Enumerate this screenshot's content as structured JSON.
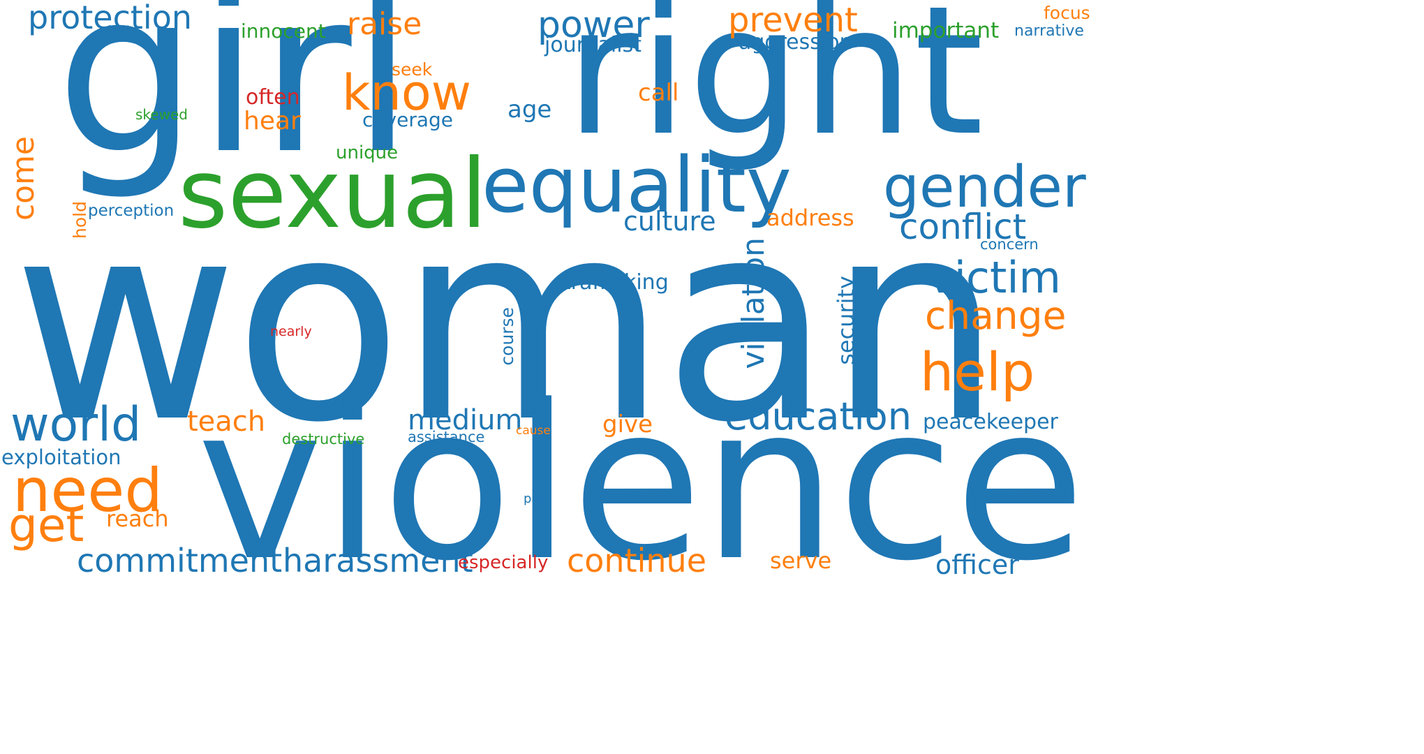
{
  "colors": {
    "blue": "#1f77b4",
    "orange": "#ff7f0e",
    "green": "#2ca02c",
    "red": "#d62728",
    "background": "#ffffff"
  },
  "words": {
    "woman": "woman",
    "violence": "violence",
    "girl": "girl",
    "right": "right",
    "sexual": "sexual",
    "equality": "equality",
    "gender": "gender",
    "know": "know",
    "help": "help",
    "need": "need",
    "world": "world",
    "education": "education",
    "victim": "victim",
    "change": "change",
    "conflict": "conflict",
    "power": "power",
    "prevent": "prevent",
    "protection": "protection",
    "raise": "raise",
    "get": "get",
    "commitment": "commitment",
    "harassment": "harassment",
    "continue": "continue",
    "violation": "violation",
    "come": "come",
    "medium": "medium",
    "teach": "teach",
    "culture": "culture",
    "officer": "officer",
    "peacekeeper": "peacekeeper",
    "security": "security",
    "trafficking": "trafficking",
    "address": "address",
    "hear": "hear",
    "call": "call",
    "give": "give",
    "reach": "reach",
    "exploitation": "exploitation",
    "serve": "serve",
    "important": "important",
    "innocent": "innocent",
    "journalist": "journalist",
    "aggression": "aggression",
    "age": "age",
    "coverage": "coverage",
    "often": "often",
    "especially": "especially",
    "focus": "focus",
    "narrative": "narrative",
    "seek": "seek",
    "unique": "unique",
    "perception": "perception",
    "hold": "hold",
    "concern": "concern",
    "course": "course",
    "skewed": "skewed",
    "nearly": "nearly",
    "destructive": "destructive",
    "assistance": "assistance",
    "cause": "cause",
    "pain": "pain"
  }
}
